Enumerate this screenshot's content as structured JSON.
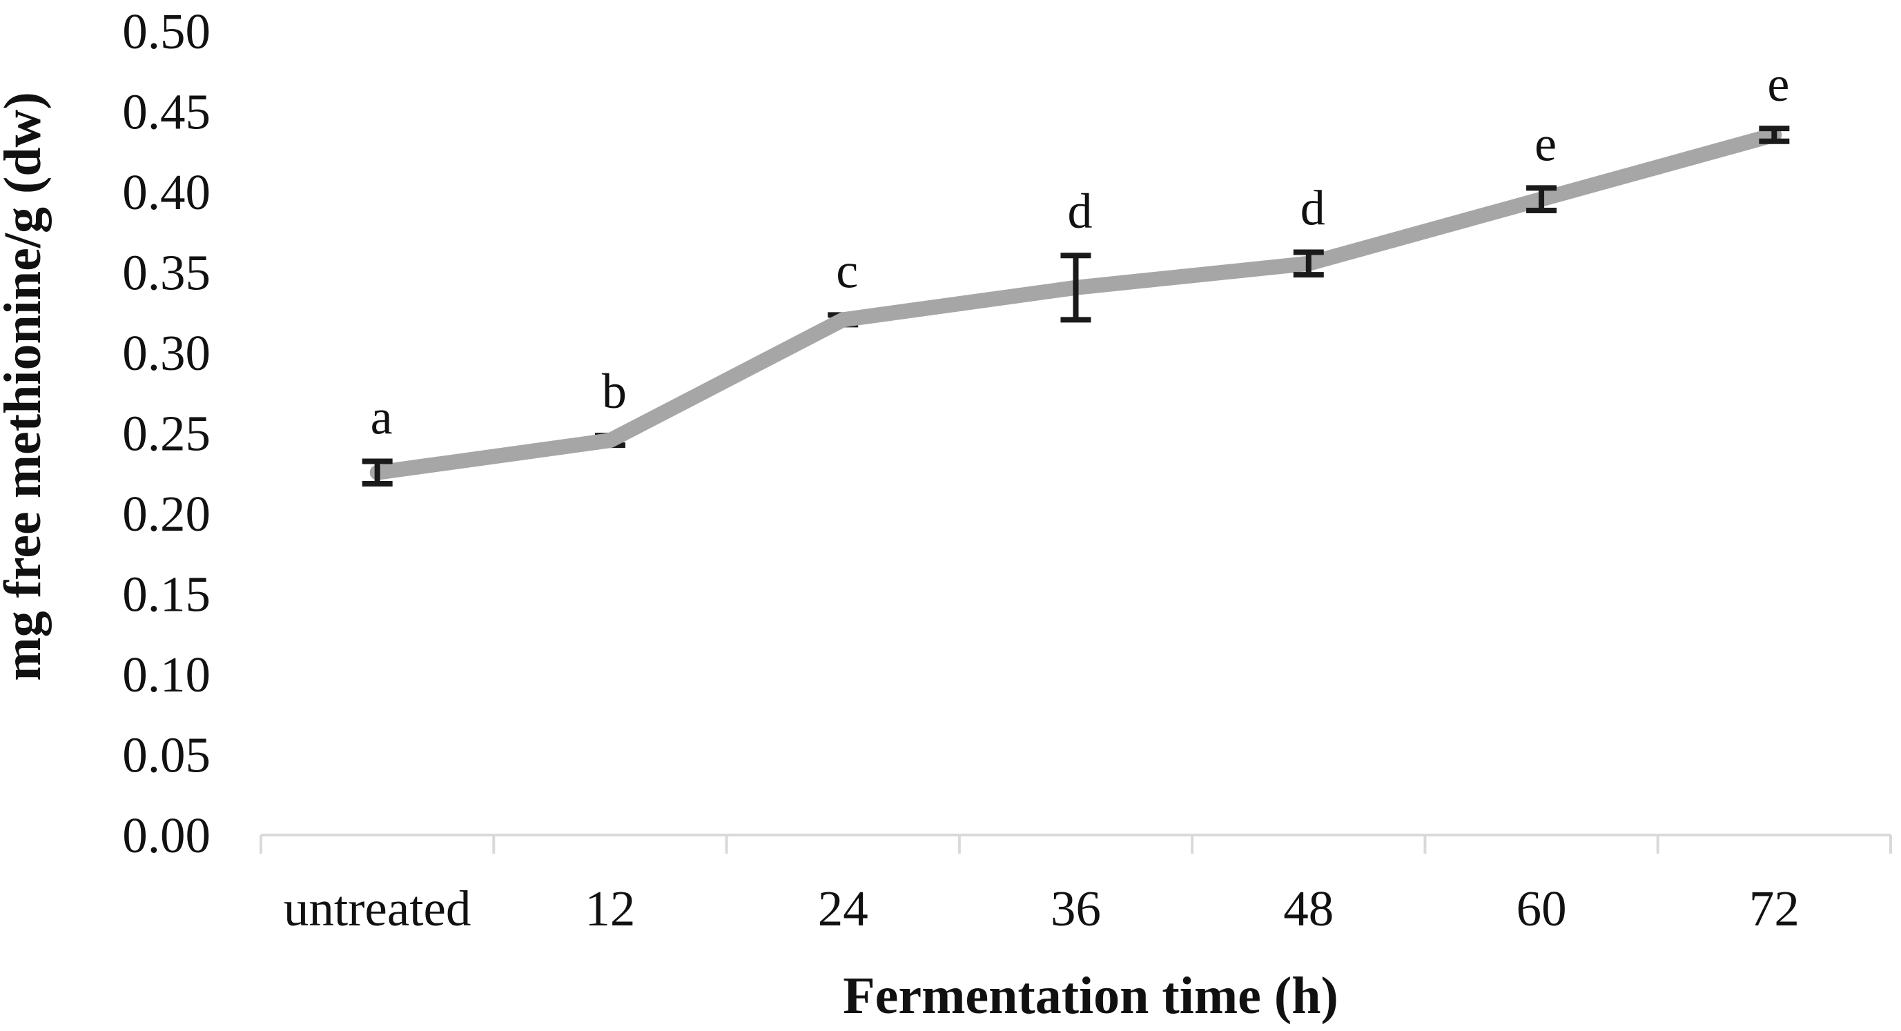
{
  "chart_data": {
    "type": "line",
    "title": "",
    "xlabel": "Fermentation time (h)",
    "ylabel": "mg  free methionine/g (dw)",
    "categories": [
      "untreated",
      "12",
      "24",
      "36",
      "48",
      "60",
      "72"
    ],
    "series": [
      {
        "name": "free methionine",
        "values": [
          0.225,
          0.245,
          0.32,
          0.34,
          0.355,
          0.395,
          0.435
        ],
        "errors": [
          0.007,
          0.003,
          0.003,
          0.02,
          0.007,
          0.007,
          0.004
        ],
        "point_labels": [
          "a",
          "b",
          "c",
          "d",
          "d",
          "e",
          "e"
        ]
      }
    ],
    "ylim": [
      0.0,
      0.5
    ],
    "ytick_step": 0.05,
    "ytick_labels": [
      "0.00",
      "0.05",
      "0.10",
      "0.15",
      "0.20",
      "0.25",
      "0.30",
      "0.35",
      "0.40",
      "0.45",
      "0.50"
    ],
    "grid": false,
    "legend": "none",
    "colors": {
      "line": "#a6a6a6",
      "axis": "#d9d9d9",
      "text": "#111111",
      "error_bar": "#1a1a1a"
    }
  }
}
